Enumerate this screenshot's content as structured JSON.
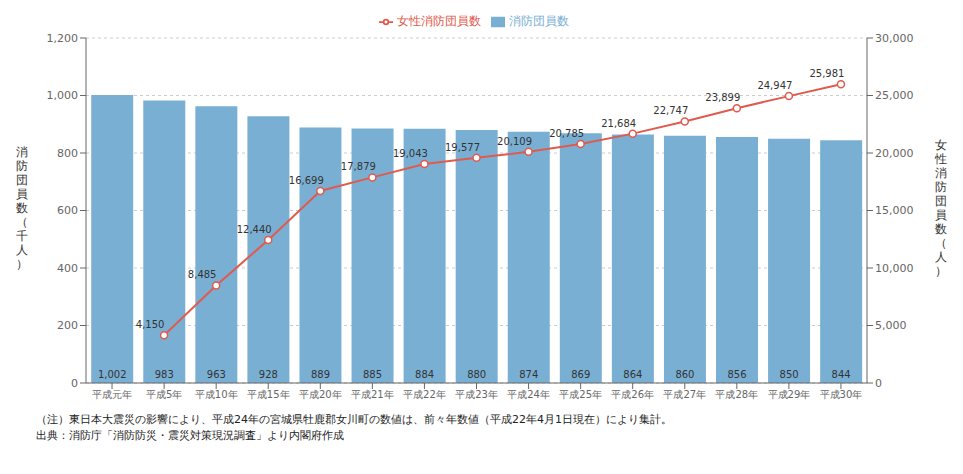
{
  "chart_data": {
    "type": "bar",
    "categories": [
      "平成元年",
      "平成5年",
      "平成10年",
      "平成15年",
      "平成20年",
      "平成21年",
      "平成22年",
      "平成23年",
      "平成24年",
      "平成25年",
      "平成26年",
      "平成27年",
      "平成28年",
      "平成29年",
      "平成30年"
    ],
    "series": [
      {
        "name": "消防団員数",
        "type": "bar",
        "color": "#7aafd4",
        "values": [
          1002,
          983,
          963,
          928,
          889,
          885,
          884,
          880,
          874,
          869,
          864,
          860,
          856,
          850,
          844
        ],
        "value_labels": [
          "1,002",
          "983",
          "963",
          "928",
          "889",
          "885",
          "884",
          "880",
          "874",
          "869",
          "864",
          "860",
          "856",
          "850",
          "844"
        ]
      },
      {
        "name": "女性消防団員数",
        "type": "line",
        "color": "#e05a4e",
        "axis": "y2",
        "marker": "o",
        "values": [
          null,
          4150,
          8485,
          12440,
          16699,
          17879,
          19043,
          19577,
          20109,
          20785,
          21684,
          22747,
          23899,
          24947,
          25981
        ],
        "value_labels": [
          null,
          "4,150",
          "8,485",
          "12,440",
          "16,699",
          "17,879",
          "19,043",
          "19,577",
          "20,109",
          "20,785",
          "21,684",
          "22,747",
          "23,899",
          "24,947",
          "25,981"
        ]
      }
    ],
    "y_label": "消\n防\n団\n員\n数\n（\n千\n人\n）",
    "y2_label": "女\n性\n消\n防\n団\n員\n数\n（\n人\n）",
    "ylim": [
      0,
      1200
    ],
    "yticks": [
      0,
      200,
      400,
      600,
      800,
      {
        "value": 1000,
        "label": "1,000"
      },
      {
        "value": 1200,
        "label": "1,200"
      }
    ],
    "y2lim": [
      0,
      30000
    ],
    "y2ticks": [
      0,
      {
        "value": 5000,
        "label": "5,000"
      },
      {
        "value": 10000,
        "label": "10,000"
      },
      {
        "value": 15000,
        "label": "15,000"
      },
      {
        "value": 20000,
        "label": "20,000"
      },
      {
        "value": 25000,
        "label": "25,000"
      },
      {
        "value": 30000,
        "label": "30,000"
      }
    ],
    "grid": true,
    "legend": "top",
    "data_labels": true,
    "annotations": [
      "（注）東日本大震災の影響により、平成24年の宮城県牡鹿郡女川町の数値は、前々年数値（平成22年4月1日現在）により集計。",
      "出典：消防庁「消防防災・震災対策現況調査」より内閣府作成"
    ]
  }
}
